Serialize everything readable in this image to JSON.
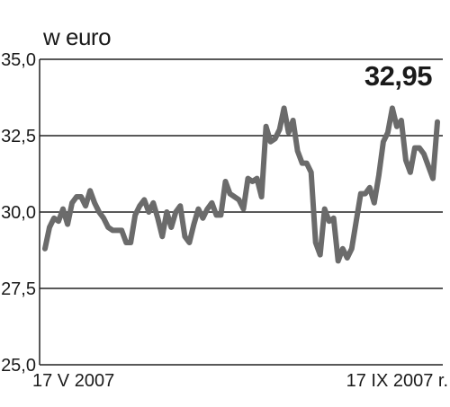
{
  "chart_data": {
    "type": "line",
    "unit_label": "w euro",
    "last_value_label": "32,95",
    "y_ticks": [
      "35,0",
      "32,5",
      "30,0",
      "27,5",
      "25,0"
    ],
    "ylim": [
      25.0,
      35.0
    ],
    "x_start_label": "17 V 2007",
    "x_end_label": "17 IX 2007 r.",
    "x": [
      "2007-05-17",
      "2007-05-18",
      "2007-05-21",
      "2007-05-22",
      "2007-05-23",
      "2007-05-24",
      "2007-05-25",
      "2007-05-28",
      "2007-05-29",
      "2007-05-30",
      "2007-05-31",
      "2007-06-01",
      "2007-06-04",
      "2007-06-05",
      "2007-06-06",
      "2007-06-07",
      "2007-06-08",
      "2007-06-11",
      "2007-06-12",
      "2007-06-13",
      "2007-06-14",
      "2007-06-15",
      "2007-06-18",
      "2007-06-19",
      "2007-06-20",
      "2007-06-21",
      "2007-06-22",
      "2007-06-25",
      "2007-06-26",
      "2007-06-27",
      "2007-06-28",
      "2007-06-29",
      "2007-07-02",
      "2007-07-03",
      "2007-07-04",
      "2007-07-05",
      "2007-07-06",
      "2007-07-09",
      "2007-07-10",
      "2007-07-11",
      "2007-07-12",
      "2007-07-13",
      "2007-07-16",
      "2007-07-17",
      "2007-07-18",
      "2007-07-19",
      "2007-07-20",
      "2007-07-23",
      "2007-07-24",
      "2007-07-25",
      "2007-07-26",
      "2007-07-27",
      "2007-07-30",
      "2007-07-31",
      "2007-08-01",
      "2007-08-02",
      "2007-08-03",
      "2007-08-06",
      "2007-08-07",
      "2007-08-08",
      "2007-08-09",
      "2007-08-10",
      "2007-08-13",
      "2007-08-14",
      "2007-08-15",
      "2007-08-16",
      "2007-08-17",
      "2007-08-20",
      "2007-08-21",
      "2007-08-22",
      "2007-08-23",
      "2007-08-24",
      "2007-08-27",
      "2007-08-28",
      "2007-08-29",
      "2007-08-30",
      "2007-08-31",
      "2007-09-03",
      "2007-09-04",
      "2007-09-05",
      "2007-09-06",
      "2007-09-07",
      "2007-09-10",
      "2007-09-11",
      "2007-09-12",
      "2007-09-13",
      "2007-09-14",
      "2007-09-17"
    ],
    "series": [
      {
        "values": [
          28.8,
          29.5,
          29.8,
          29.7,
          30.1,
          29.6,
          30.3,
          30.5,
          30.5,
          30.2,
          30.7,
          30.3,
          30.0,
          29.8,
          29.5,
          29.4,
          29.4,
          29.4,
          29.0,
          29.0,
          29.9,
          30.2,
          30.4,
          30.0,
          30.3,
          29.8,
          29.2,
          30.0,
          29.5,
          30.0,
          30.2,
          29.2,
          29.0,
          29.6,
          30.1,
          29.8,
          30.1,
          30.3,
          29.9,
          29.9,
          31.0,
          30.6,
          30.5,
          30.4,
          30.1,
          31.1,
          31.0,
          31.1,
          30.5,
          32.8,
          32.3,
          32.4,
          32.7,
          33.4,
          32.6,
          33.0,
          32.0,
          31.6,
          31.6,
          31.3,
          29.0,
          28.6,
          30.1,
          29.7,
          29.8,
          28.4,
          28.8,
          28.5,
          28.8,
          29.7,
          30.6,
          30.6,
          30.8,
          30.3,
          31.2,
          32.3,
          32.6,
          33.4,
          32.8,
          33.0,
          31.7,
          31.3,
          32.1,
          32.1,
          31.9,
          31.5,
          31.1,
          32.95
        ]
      }
    ]
  }
}
